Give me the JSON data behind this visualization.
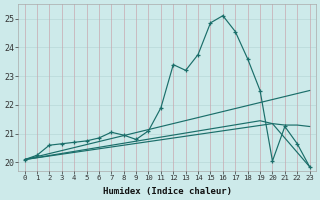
{
  "xlabel": "Humidex (Indice chaleur)",
  "xlim": [
    -0.5,
    23.5
  ],
  "ylim": [
    19.7,
    25.5
  ],
  "yticks": [
    20,
    21,
    22,
    23,
    24,
    25
  ],
  "xticks": [
    0,
    1,
    2,
    3,
    4,
    5,
    6,
    7,
    8,
    9,
    10,
    11,
    12,
    13,
    14,
    15,
    16,
    17,
    18,
    19,
    20,
    21,
    22,
    23
  ],
  "background_color": "#cdeaea",
  "line_color": "#1a6e6a",
  "grid_color": "#b8d8d8",
  "lines": [
    {
      "marker": true,
      "x": [
        0,
        1,
        2,
        3,
        4,
        5,
        6,
        7,
        8,
        9,
        10,
        11,
        12,
        13,
        14,
        15,
        16,
        17,
        18,
        19,
        20,
        21,
        22,
        23
      ],
      "y": [
        20.1,
        20.25,
        20.6,
        20.65,
        20.7,
        20.75,
        20.85,
        21.05,
        20.95,
        20.8,
        21.1,
        21.9,
        23.4,
        23.2,
        23.75,
        24.85,
        25.1,
        24.55,
        23.6,
        22.5,
        20.05,
        21.25,
        20.65,
        19.85
      ]
    },
    {
      "marker": false,
      "x": [
        0,
        23
      ],
      "y": [
        20.1,
        22.5
      ]
    },
    {
      "marker": false,
      "x": [
        0,
        20,
        23
      ],
      "y": [
        20.1,
        21.35,
        19.85
      ]
    },
    {
      "marker": false,
      "x": [
        0,
        19,
        20,
        21,
        22,
        23
      ],
      "y": [
        20.1,
        21.45,
        21.35,
        21.3,
        21.3,
        21.25
      ]
    }
  ]
}
